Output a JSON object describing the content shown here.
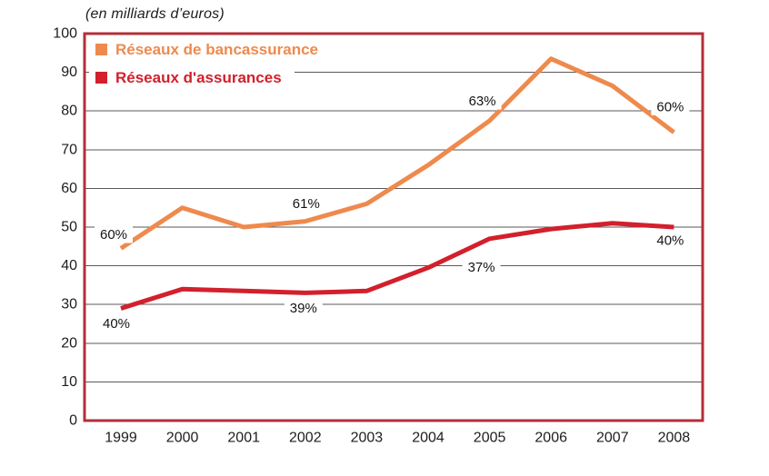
{
  "colors": {
    "bancassurance": "#ee8a4d",
    "assurances": "#d2202c",
    "frame": "#b42f38",
    "grid": "#595959",
    "text": "#1d1d1d"
  },
  "legend": {
    "items": [
      {
        "label": "Réseaux de bancassurance",
        "color": "#ee8a4d"
      },
      {
        "label": "Réseaux d'assurances",
        "color": "#d2202c"
      }
    ]
  },
  "chart_data": {
    "type": "line",
    "title": "",
    "ylabel": "(en milliards d’euros)",
    "xlabel": "",
    "ylim": [
      0,
      100
    ],
    "ytick_step": 10,
    "grid": true,
    "legend_position": "top-left",
    "categories": [
      "1999",
      "2000",
      "2001",
      "2002",
      "2003",
      "2004",
      "2005",
      "2006",
      "2007",
      "2008"
    ],
    "series": [
      {
        "name": "Réseaux de bancassurance",
        "color": "#ee8a4d",
        "values": [
          44.5,
          55,
          50,
          51.5,
          56,
          66,
          77.5,
          93.5,
          86.5,
          74.5
        ]
      },
      {
        "name": "Réseaux d'assurances",
        "color": "#d2202c",
        "values": [
          29,
          34,
          33.5,
          33,
          33.5,
          39.5,
          47,
          49.5,
          51,
          50
        ]
      }
    ],
    "annotations": [
      {
        "series": "Réseaux de bancassurance",
        "category": "1999",
        "label": "60%",
        "y": 48,
        "dx": -8
      },
      {
        "series": "Réseaux d'assurances",
        "category": "1999",
        "label": "40%",
        "y": 25,
        "dx": -5
      },
      {
        "series": "Réseaux de bancassurance",
        "category": "2002",
        "label": "61%",
        "y": 56,
        "dx": 1
      },
      {
        "series": "Réseaux d'assurances",
        "category": "2002",
        "label": "39%",
        "y": 29,
        "dx": -2
      },
      {
        "series": "Réseaux de bancassurance",
        "category": "2005",
        "label": "63%",
        "y": 82.5,
        "dx": -8
      },
      {
        "series": "Réseaux d'assurances",
        "category": "2005",
        "label": "37%",
        "y": 39.5,
        "dx": -9
      },
      {
        "series": "Réseaux de bancassurance",
        "category": "2008",
        "label": "60%",
        "y": 81,
        "dx": -4
      },
      {
        "series": "Réseaux d'assurances",
        "category": "2008",
        "label": "40%",
        "y": 46.5,
        "dx": -4
      }
    ]
  }
}
